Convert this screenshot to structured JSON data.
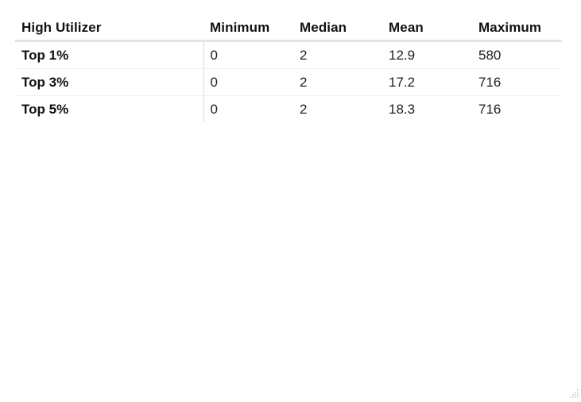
{
  "table": {
    "headers": [
      "High Utilizer",
      "Minimum",
      "Median",
      "Mean",
      "Maximum"
    ],
    "rows": [
      {
        "label": "Top 1%",
        "minimum": "0",
        "median": "2",
        "mean": "12.9",
        "maximum": "580"
      },
      {
        "label": "Top 3%",
        "minimum": "0",
        "median": "2",
        "mean": "17.2",
        "maximum": "716"
      },
      {
        "label": "Top 5%",
        "minimum": "0",
        "median": "2",
        "mean": "18.3",
        "maximum": "716"
      }
    ]
  },
  "icons": {
    "resize_grip": "resize-grip-icon"
  },
  "colors": {
    "header_rule": "#e4e4e4",
    "row_rule": "#eeeeee",
    "row_header_divider": "#d8d8d8"
  }
}
